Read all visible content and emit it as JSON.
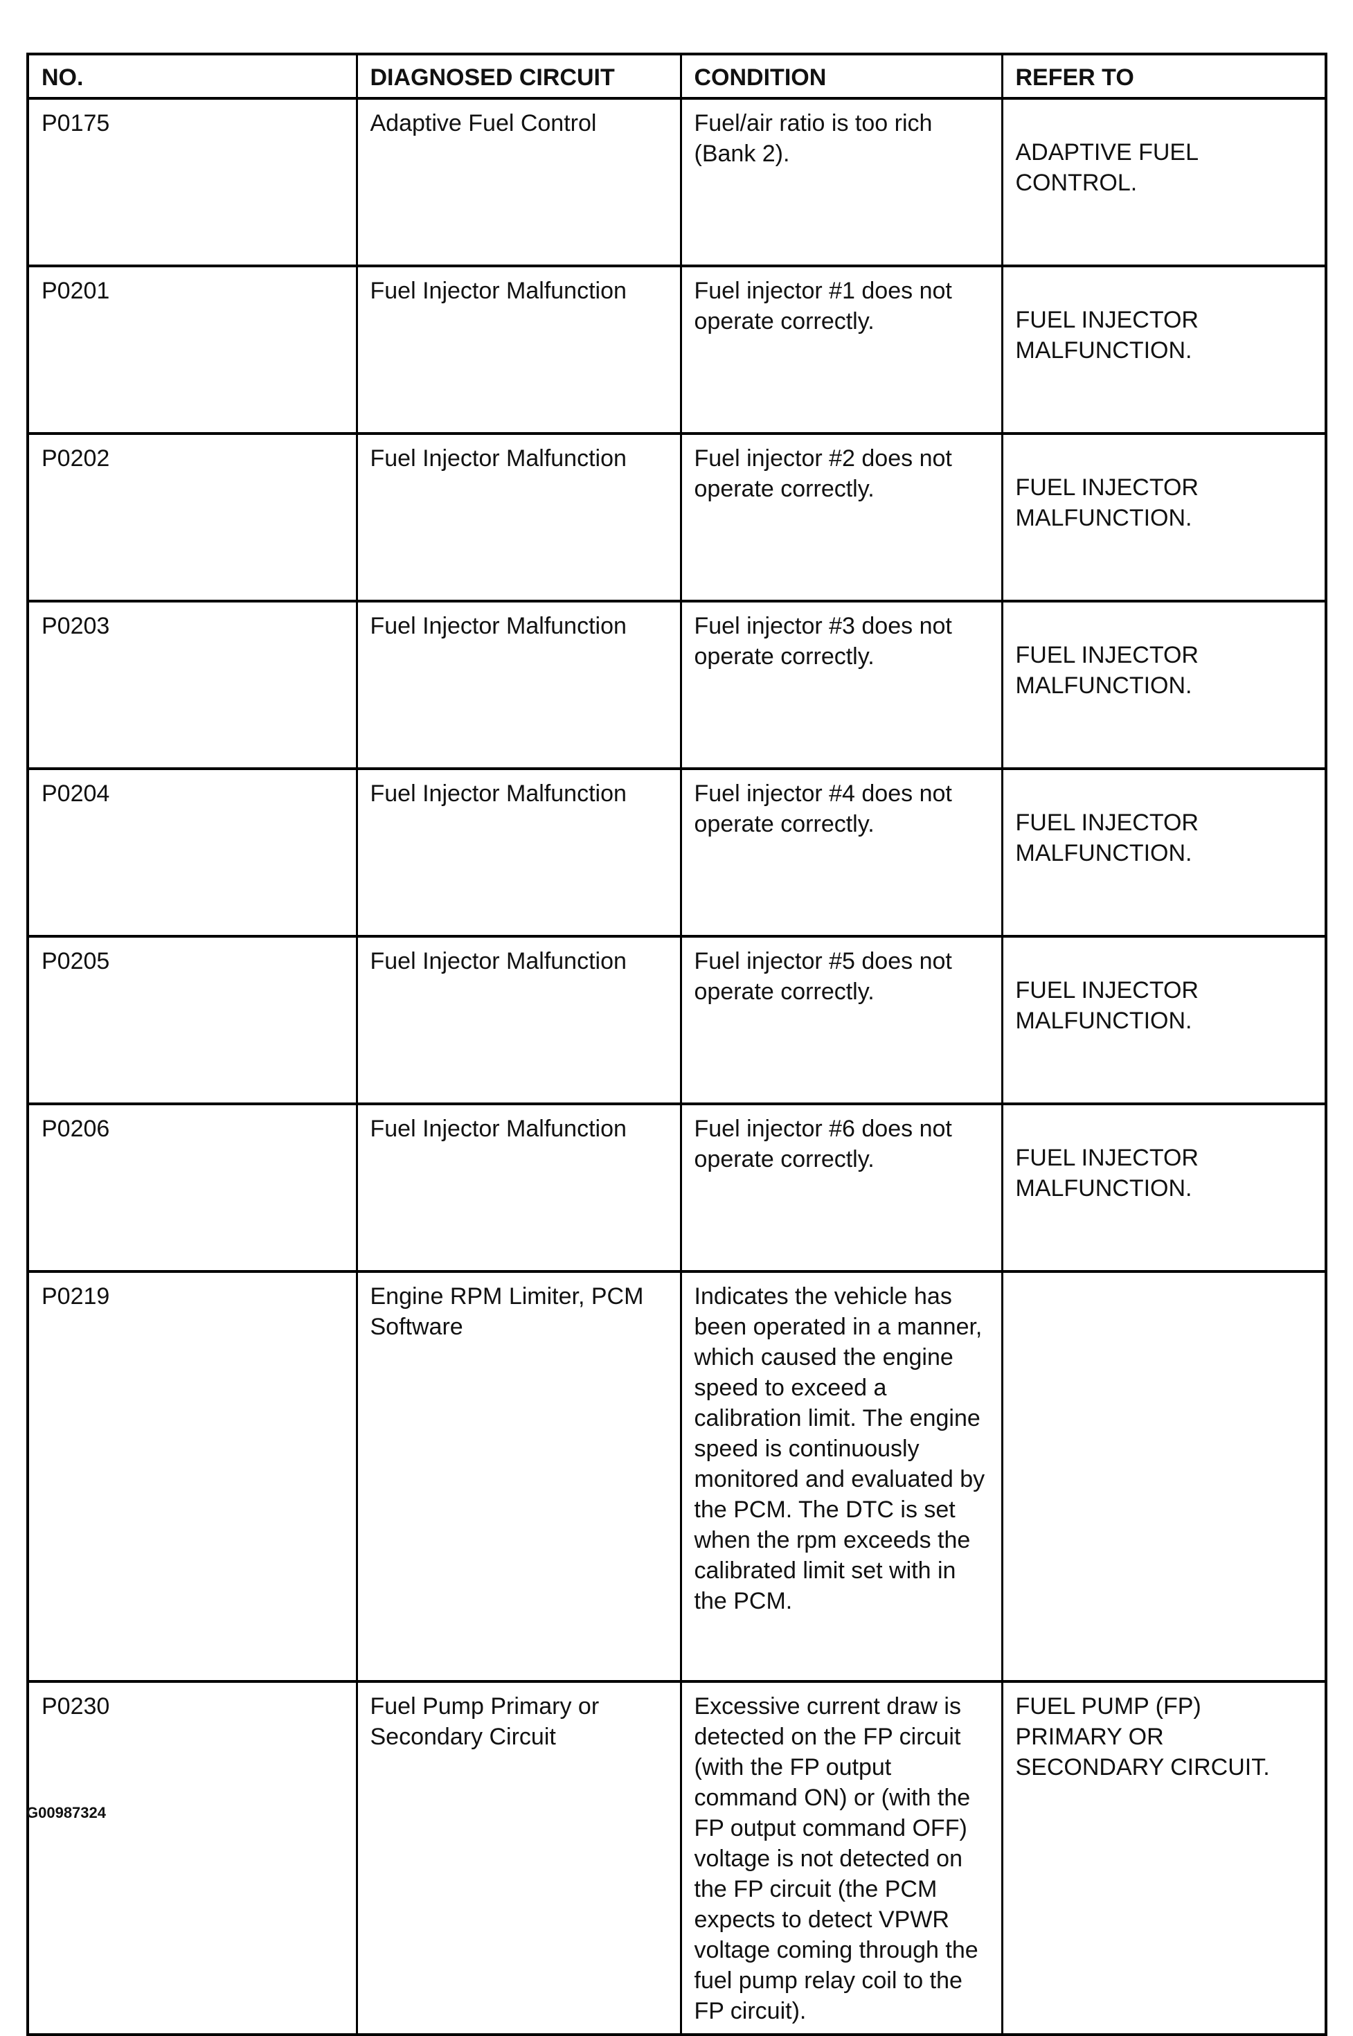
{
  "headers": [
    "NO.",
    "DIAGNOSED CIRCUIT",
    "CONDITION",
    "REFER TO"
  ],
  "rows": [
    {
      "no": "P0175",
      "circuit": "Adaptive Fuel Control",
      "condition": "Fuel/air ratio is too rich (Bank 2).",
      "refer": "ADAPTIVE FUEL CONTROL."
    },
    {
      "no": "P0201",
      "circuit": "Fuel Injector Malfunction",
      "condition": "Fuel injector #1 does not operate correctly.",
      "refer": "FUEL INJECTOR MALFUNCTION."
    },
    {
      "no": "P0202",
      "circuit": "Fuel Injector Malfunction",
      "condition": "Fuel injector #2 does not operate correctly.",
      "refer": "FUEL INJECTOR MALFUNCTION."
    },
    {
      "no": "P0203",
      "circuit": "Fuel Injector Malfunction",
      "condition": "Fuel injector #3 does not operate correctly.",
      "refer": "FUEL INJECTOR MALFUNCTION."
    },
    {
      "no": "P0204",
      "circuit": "Fuel Injector Malfunction",
      "condition": "Fuel injector #4 does not operate correctly.",
      "refer": "FUEL INJECTOR MALFUNCTION."
    },
    {
      "no": "P0205",
      "circuit": "Fuel Injector Malfunction",
      "condition": "Fuel injector #5 does not operate correctly.",
      "refer": "FUEL INJECTOR MALFUNCTION."
    },
    {
      "no": "P0206",
      "circuit": "Fuel Injector Malfunction",
      "condition": "Fuel injector #6 does not operate correctly.",
      "refer": "FUEL INJECTOR MALFUNCTION."
    },
    {
      "no": "P0219",
      "circuit": "Engine RPM Limiter, PCM Software",
      "condition": "Indicates the vehicle has been operated in a manner, which caused the engine speed to exceed a calibration limit. The engine speed is continuously monitored and evaluated by the PCM. The DTC is set when the rpm exceeds the calibrated limit set with in the PCM.",
      "refer": ""
    },
    {
      "no": "P0230",
      "circuit": "Fuel Pump Primary or Secondary Circuit",
      "condition": "Excessive current draw is detected on the FP circuit (with the FP output command ON) or (with the FP output command OFF) voltage is not detected on the FP circuit (the PCM expects to detect VPWR voltage coming through the fuel pump relay coil to the FP circuit).",
      "refer": "FUEL PUMP (FP) PRIMARY OR SECONDARY CIRCUIT."
    }
  ],
  "caption": "G00987324"
}
